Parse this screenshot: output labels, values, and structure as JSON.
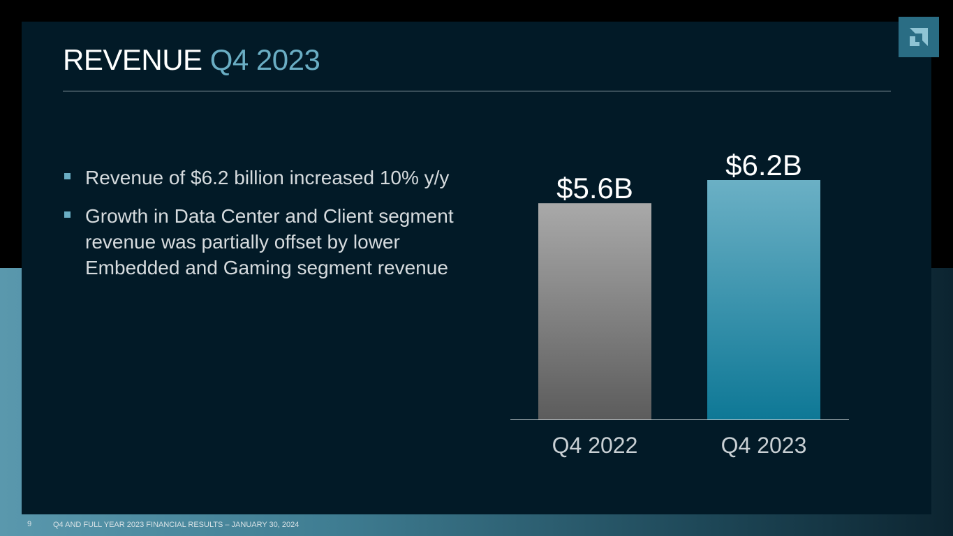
{
  "slide": {
    "title_main": "REVENUE",
    "title_accent": "Q4 2023",
    "bullets": [
      "Revenue of $6.2 billion increased 10% y/y",
      "Growth in Data Center and Client segment revenue was partially offset by lower Embedded and Gaming segment revenue"
    ],
    "page_number": "9",
    "footer": "Q4 AND FULL YEAR 2023 FINANCIAL RESULTS – JANUARY 30, 2024"
  },
  "colors": {
    "accent": "#6aaec4",
    "bar_q4_2022_top": "#a9a9a9",
    "bar_q4_2022_bottom": "#5c5c5c",
    "bar_q4_2023_top": "#6bb0c5",
    "bar_q4_2023_bottom": "#0e7896"
  },
  "chart_data": {
    "type": "bar",
    "title": "",
    "xlabel": "",
    "ylabel": "",
    "categories": [
      "Q4 2022",
      "Q4 2023"
    ],
    "values": [
      5.6,
      6.2
    ],
    "data_labels": [
      "$5.6B",
      "$6.2B"
    ],
    "unit": "$B",
    "ylim": [
      0,
      6.2
    ],
    "grid": false,
    "legend": "none"
  }
}
